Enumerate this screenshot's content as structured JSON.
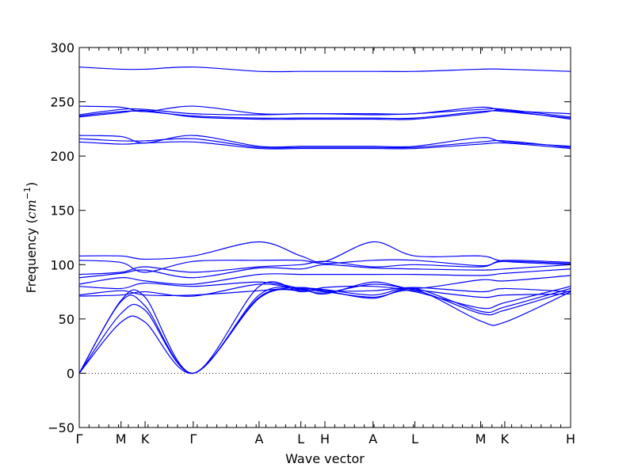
{
  "chart_data": {
    "type": "line",
    "title": "",
    "xlabel": "Wave vector",
    "ylabel": {
      "prefix": "Frequency (",
      "unit": "cm",
      "exponent": "−1",
      "suffix": ")"
    },
    "ylim": [
      -50,
      300
    ],
    "yticks": [
      {
        "value": -50,
        "label": "−50"
      },
      {
        "value": 0,
        "label": "0"
      },
      {
        "value": 50,
        "label": "50"
      },
      {
        "value": 100,
        "label": "100"
      },
      {
        "value": 150,
        "label": "150"
      },
      {
        "value": 200,
        "label": "200"
      },
      {
        "value": 250,
        "label": "250"
      },
      {
        "value": 300,
        "label": "300"
      }
    ],
    "xlim": [
      0,
      1
    ],
    "xticks": [
      {
        "value": 0.0,
        "label": "Γ"
      },
      {
        "value": 0.085,
        "label": "M"
      },
      {
        "value": 0.134,
        "label": "K"
      },
      {
        "value": 0.232,
        "label": "Γ"
      },
      {
        "value": 0.366,
        "label": "A"
      },
      {
        "value": 0.451,
        "label": "L"
      },
      {
        "value": 0.5,
        "label": "H"
      },
      {
        "value": 0.598,
        "label": "A"
      },
      {
        "value": 0.683,
        "label": "L"
      },
      {
        "value": 0.817,
        "label": "M"
      },
      {
        "value": 0.866,
        "label": "K"
      },
      {
        "value": 1.0,
        "label": "H"
      }
    ],
    "zero_line": {
      "value": 0,
      "style": "dotted",
      "color": "#000000"
    },
    "series_color": "#0000ff",
    "grid": false,
    "series": [
      {
        "x": [
          0,
          0.085,
          0.134,
          0.232,
          0.366,
          0.451,
          0.5,
          0.598,
          0.683,
          0.817,
          0.866,
          1
        ],
        "values": [
          0,
          47,
          47,
          0,
          69,
          77,
          76,
          69,
          77,
          48,
          47,
          75
        ]
      },
      {
        "x": [
          0,
          0.085,
          0.134,
          0.232,
          0.366,
          0.451,
          0.5,
          0.598,
          0.683,
          0.817,
          0.866,
          1
        ],
        "values": [
          0,
          55,
          58,
          0,
          70,
          76,
          75,
          70,
          76,
          55,
          58,
          76
        ]
      },
      {
        "x": [
          0,
          0.085,
          0.134,
          0.232,
          0.366,
          0.451,
          0.5,
          0.598,
          0.683,
          0.817,
          0.866,
          1
        ],
        "values": [
          0,
          66,
          62,
          0,
          72,
          78,
          77,
          72,
          78,
          57,
          61,
          78
        ]
      },
      {
        "x": [
          0,
          0.085,
          0.134,
          0.232,
          0.366,
          0.451,
          0.5,
          0.598,
          0.683,
          0.817,
          0.866,
          1
        ],
        "values": [
          0,
          67,
          70,
          0,
          80,
          75,
          79,
          80,
          75,
          60,
          65,
          80
        ]
      },
      {
        "x": [
          0,
          0.085,
          0.134,
          0.232,
          0.366,
          0.451,
          0.5,
          0.598,
          0.683,
          0.817,
          0.866,
          1
        ],
        "values": [
          71,
          72,
          75,
          71,
          82,
          77,
          74,
          82,
          77,
          70,
          72,
          73
        ]
      },
      {
        "x": [
          0,
          0.085,
          0.134,
          0.232,
          0.366,
          0.451,
          0.5,
          0.598,
          0.683,
          0.817,
          0.866,
          1
        ],
        "values": [
          72,
          76,
          72,
          72,
          76,
          79,
          76,
          76,
          79,
          75,
          78,
          75
        ]
      },
      {
        "x": [
          0,
          0.085,
          0.134,
          0.232,
          0.366,
          0.451,
          0.5,
          0.598,
          0.683,
          0.817,
          0.866,
          1
        ],
        "values": [
          80,
          78,
          83,
          80,
          84,
          78,
          73,
          84,
          78,
          86,
          85,
          90
        ]
      },
      {
        "x": [
          0,
          0.085,
          0.134,
          0.232,
          0.366,
          0.451,
          0.5,
          0.598,
          0.683,
          0.817,
          0.866,
          1
        ],
        "values": [
          82,
          88,
          85,
          82,
          91,
          91,
          91,
          91,
          91,
          90,
          92,
          96
        ]
      },
      {
        "x": [
          0,
          0.085,
          0.134,
          0.232,
          0.366,
          0.451,
          0.5,
          0.598,
          0.683,
          0.817,
          0.866,
          1
        ],
        "values": [
          88,
          92,
          95,
          88,
          97,
          96,
          100,
          97,
          96,
          95,
          96,
          100
        ]
      },
      {
        "x": [
          0,
          0.085,
          0.134,
          0.232,
          0.366,
          0.451,
          0.5,
          0.598,
          0.683,
          0.817,
          0.866,
          1
        ],
        "values": [
          91,
          93,
          98,
          93,
          98,
          100,
          103,
          98,
          100,
          98,
          104,
          102
        ]
      },
      {
        "x": [
          0,
          0.085,
          0.134,
          0.232,
          0.366,
          0.451,
          0.5,
          0.598,
          0.683,
          0.817,
          0.866,
          1
        ],
        "values": [
          104,
          102,
          93,
          103,
          104,
          104,
          101,
          104,
          104,
          99,
          103,
          101
        ]
      },
      {
        "x": [
          0,
          0.085,
          0.134,
          0.232,
          0.366,
          0.451,
          0.5,
          0.598,
          0.683,
          0.817,
          0.866,
          1
        ],
        "values": [
          108,
          108,
          105,
          108,
          121,
          108,
          103,
          121,
          108,
          108,
          103,
          100
        ]
      },
      {
        "x": [
          0,
          0.085,
          0.134,
          0.232,
          0.366,
          0.451,
          0.5,
          0.598,
          0.683,
          0.817,
          0.866,
          1
        ],
        "values": [
          213,
          211,
          212,
          213,
          207,
          207,
          207,
          207,
          207,
          211,
          212,
          207
        ]
      },
      {
        "x": [
          0,
          0.085,
          0.134,
          0.232,
          0.366,
          0.451,
          0.5,
          0.598,
          0.683,
          0.817,
          0.866,
          1
        ],
        "values": [
          216,
          214,
          214,
          216,
          208,
          208,
          208,
          208,
          208,
          213,
          214,
          208
        ]
      },
      {
        "x": [
          0,
          0.085,
          0.134,
          0.232,
          0.366,
          0.451,
          0.5,
          0.598,
          0.683,
          0.817,
          0.866,
          1
        ],
        "values": [
          219,
          218,
          212,
          219,
          209,
          209,
          209,
          209,
          209,
          217,
          213,
          209
        ]
      },
      {
        "x": [
          0,
          0.085,
          0.134,
          0.232,
          0.366,
          0.451,
          0.5,
          0.598,
          0.683,
          0.817,
          0.866,
          1
        ],
        "values": [
          236,
          240,
          242,
          236,
          234,
          234,
          234,
          234,
          234,
          240,
          242,
          234
        ]
      },
      {
        "x": [
          0,
          0.085,
          0.134,
          0.232,
          0.366,
          0.451,
          0.5,
          0.598,
          0.683,
          0.817,
          0.866,
          1
        ],
        "values": [
          237,
          241,
          241,
          237,
          235,
          235,
          235,
          235,
          235,
          241,
          241,
          235
        ]
      },
      {
        "x": [
          0,
          0.085,
          0.134,
          0.232,
          0.366,
          0.451,
          0.5,
          0.598,
          0.683,
          0.817,
          0.866,
          1
        ],
        "values": [
          238,
          243,
          243,
          239,
          238,
          239,
          239,
          238,
          239,
          243,
          243,
          236
        ]
      },
      {
        "x": [
          0,
          0.085,
          0.134,
          0.232,
          0.366,
          0.451,
          0.5,
          0.598,
          0.683,
          0.817,
          0.866,
          1
        ],
        "values": [
          246,
          245,
          241,
          246,
          239,
          239,
          239,
          239,
          239,
          245,
          242,
          239
        ]
      },
      {
        "x": [
          0,
          0.085,
          0.134,
          0.232,
          0.366,
          0.451,
          0.5,
          0.598,
          0.683,
          0.817,
          0.866,
          1
        ],
        "values": [
          282,
          280,
          280,
          282,
          278,
          278,
          278,
          278,
          278,
          280,
          280,
          278
        ]
      }
    ]
  }
}
